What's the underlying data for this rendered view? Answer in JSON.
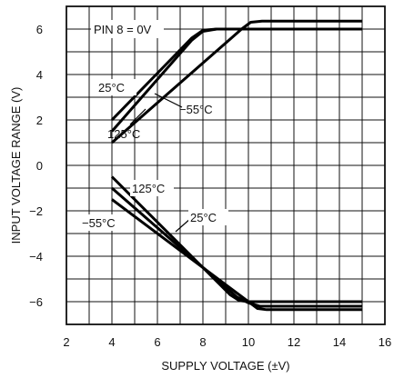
{
  "chart_data": {
    "type": "line",
    "title": "",
    "xlabel": "SUPPLY VOLTAGE (±V)",
    "ylabel": "INPUT VOLTAGE RANGE (V)",
    "xlim": [
      2,
      16
    ],
    "ylim": [
      -7,
      7
    ],
    "x_ticks": [
      "2",
      "4",
      "6",
      "8",
      "10",
      "12",
      "14",
      "16"
    ],
    "y_ticks": [
      "6",
      "4",
      "2",
      "0",
      "−2",
      "−4",
      "−6"
    ],
    "grid": true,
    "annotation": "PIN 8 = 0V",
    "series": [
      {
        "name": "25°C",
        "group": "upper",
        "x": [
          4,
          7.5,
          8,
          8.6,
          15
        ],
        "y": [
          1.5,
          5.5,
          5.9,
          6.0,
          6.0
        ]
      },
      {
        "name": "−55°C",
        "group": "upper",
        "x": [
          4,
          7.5,
          8,
          8.6,
          15
        ],
        "y": [
          2.0,
          5.6,
          5.95,
          6.0,
          6.0
        ]
      },
      {
        "name": "125°C",
        "group": "upper",
        "x": [
          4,
          9.7,
          10.1,
          10.6,
          15
        ],
        "y": [
          1.0,
          6.0,
          6.3,
          6.35,
          6.35
        ]
      },
      {
        "name": "125°C",
        "group": "lower",
        "x": [
          4,
          9.2,
          9.6,
          10.0,
          15
        ],
        "y": [
          -0.5,
          -5.7,
          -5.95,
          -6.0,
          -6.0
        ]
      },
      {
        "name": "25°C",
        "group": "lower",
        "x": [
          4,
          9.5,
          10.0,
          10.5,
          15
        ],
        "y": [
          -1.0,
          -5.8,
          -6.05,
          -6.2,
          -6.2
        ]
      },
      {
        "name": "−55°C",
        "group": "lower",
        "x": [
          4,
          10.0,
          10.4,
          10.8,
          15
        ],
        "y": [
          -1.5,
          -6.0,
          -6.3,
          -6.35,
          -6.35
        ]
      }
    ],
    "labels": [
      "25°C",
      "−55°C",
      "125°C",
      "125°C",
      "25°C",
      "−55°C"
    ]
  }
}
